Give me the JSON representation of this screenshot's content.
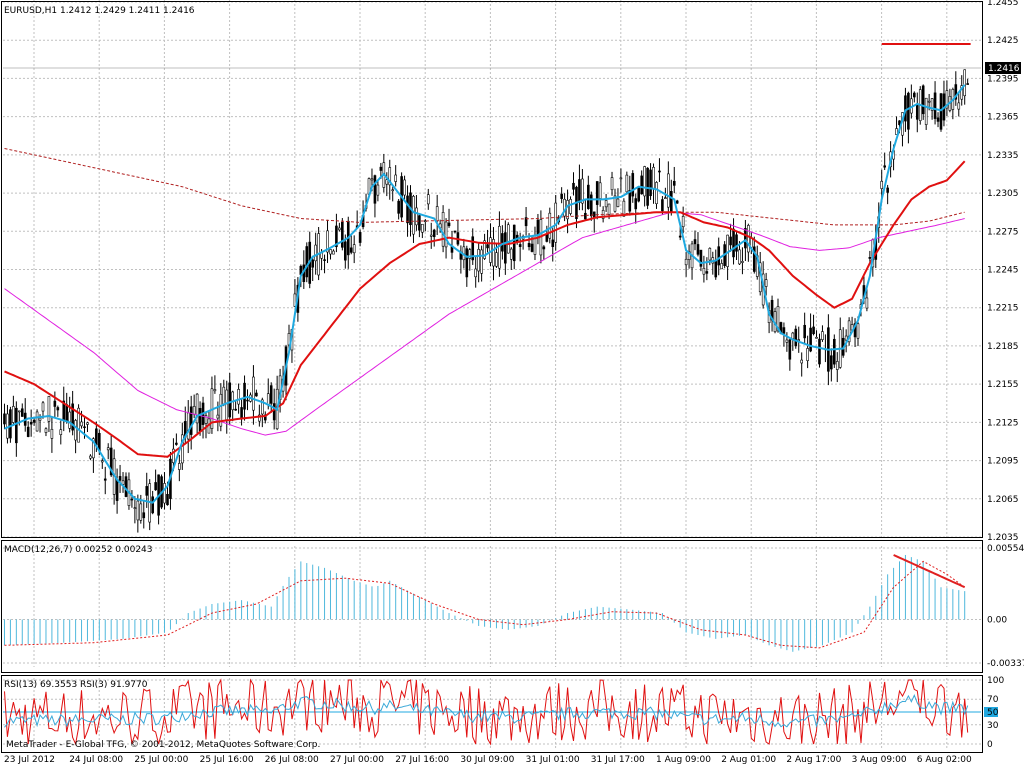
{
  "main": {
    "title": "EURUSD,H1  1.2412 1.2429 1.2411 1.2416",
    "current_price": "1.2416",
    "yticks": [
      "1.2455",
      "1.2425",
      "1.2395",
      "1.2365",
      "1.2335",
      "1.2305",
      "1.2275",
      "1.2245",
      "1.2215",
      "1.2185",
      "1.2155",
      "1.2125",
      "1.2095",
      "1.2065",
      "1.2035"
    ]
  },
  "macd": {
    "title": "MACD(12,26,7) 0.00252 0.00243",
    "yticks": [
      "0.00554",
      "0.00",
      "-0.00337"
    ]
  },
  "rsi": {
    "title": "RSI(13) 69.3553  RSI(3) 91.9770",
    "yticks": [
      "100",
      "70",
      "50",
      "30",
      "0"
    ],
    "level_label": "50"
  },
  "xticks": [
    "23 Jul 2012",
    "24 Jul 08:00",
    "25 Jul 00:00",
    "25 Jul 16:00",
    "26 Jul 08:00",
    "27 Jul 00:00",
    "27 Jul 16:00",
    "30 Jul 09:00",
    "31 Jul 01:00",
    "31 Jul 17:00",
    "1 Aug 09:00",
    "2 Aug 01:00",
    "2 Aug 17:00",
    "3 Aug 09:00",
    "6 Aug 02:00"
  ],
  "copyright": "MetaTrader - E-Global TFG, © 2001-2012, MetaQuotes Software Corp.",
  "colors": {
    "background": "#ffffff",
    "panel_bg": "#ffffff",
    "grid": "#c0c0c0",
    "candle": "#000000",
    "fast_ma": "#1fa9e0",
    "mid_ma": "#e01010",
    "slow_ma": "#e020e0",
    "dotted_ma": "#b02020",
    "macd_hist": "#4fb8dc",
    "macd_signal": "#e02020",
    "rsi13": "#3aa8d8",
    "rsi3": "#e01010",
    "level": "#20a8e0",
    "price_label_bg": "#000000",
    "price_label_fg": "#ffffff"
  },
  "chart_data": {
    "type": "line",
    "main_ylim": [
      1.2035,
      1.2455
    ],
    "macd_ylim": [
      -0.00337,
      0.00554
    ],
    "rsi_ylim": [
      0,
      100
    ],
    "fast_ma": [
      [
        0,
        1.212
      ],
      [
        8,
        1.2128
      ],
      [
        15,
        1.213
      ],
      [
        22,
        1.2125
      ],
      [
        30,
        1.211
      ],
      [
        38,
        1.208
      ],
      [
        44,
        1.2065
      ],
      [
        50,
        1.2062
      ],
      [
        55,
        1.2075
      ],
      [
        60,
        1.211
      ],
      [
        65,
        1.213
      ],
      [
        70,
        1.2135
      ],
      [
        75,
        1.214
      ],
      [
        82,
        1.2145
      ],
      [
        88,
        1.214
      ],
      [
        92,
        1.2135
      ],
      [
        96,
        1.218
      ],
      [
        100,
        1.224
      ],
      [
        104,
        1.2255
      ],
      [
        110,
        1.2262
      ],
      [
        116,
        1.227
      ],
      [
        120,
        1.228
      ],
      [
        124,
        1.231
      ],
      [
        128,
        1.232
      ],
      [
        133,
        1.2305
      ],
      [
        138,
        1.229
      ],
      [
        145,
        1.2285
      ],
      [
        150,
        1.2265
      ],
      [
        156,
        1.2255
      ],
      [
        162,
        1.2256
      ],
      [
        168,
        1.2265
      ],
      [
        174,
        1.227
      ],
      [
        180,
        1.2272
      ],
      [
        186,
        1.228
      ],
      [
        190,
        1.2295
      ],
      [
        196,
        1.23
      ],
      [
        202,
        1.23
      ],
      [
        208,
        1.2302
      ],
      [
        214,
        1.231
      ],
      [
        220,
        1.2308
      ],
      [
        226,
        1.23
      ],
      [
        230,
        1.226
      ],
      [
        235,
        1.225
      ],
      [
        240,
        1.2252
      ],
      [
        245,
        1.226
      ],
      [
        250,
        1.2268
      ],
      [
        254,
        1.2255
      ],
      [
        258,
        1.221
      ],
      [
        262,
        1.2195
      ],
      [
        266,
        1.219
      ],
      [
        272,
        1.2185
      ],
      [
        278,
        1.2182
      ],
      [
        283,
        1.2183
      ],
      [
        288,
        1.2205
      ],
      [
        292,
        1.224
      ],
      [
        296,
        1.23
      ],
      [
        300,
        1.234
      ],
      [
        304,
        1.237
      ],
      [
        308,
        1.2375
      ],
      [
        312,
        1.2372
      ],
      [
        316,
        1.237
      ],
      [
        320,
        1.2378
      ],
      [
        324,
        1.239
      ]
    ],
    "mid_ma": [
      [
        0,
        1.2165
      ],
      [
        10,
        1.2155
      ],
      [
        20,
        1.214
      ],
      [
        30,
        1.2125
      ],
      [
        38,
        1.2112
      ],
      [
        45,
        1.21
      ],
      [
        55,
        1.2098
      ],
      [
        62,
        1.211
      ],
      [
        70,
        1.2125
      ],
      [
        80,
        1.2128
      ],
      [
        88,
        1.213
      ],
      [
        94,
        1.214
      ],
      [
        100,
        1.217
      ],
      [
        110,
        1.22
      ],
      [
        120,
        1.223
      ],
      [
        130,
        1.225
      ],
      [
        140,
        1.2265
      ],
      [
        150,
        1.227
      ],
      [
        160,
        1.2266
      ],
      [
        170,
        1.2265
      ],
      [
        180,
        1.227
      ],
      [
        190,
        1.228
      ],
      [
        200,
        1.2286
      ],
      [
        210,
        1.2288
      ],
      [
        220,
        1.229
      ],
      [
        228,
        1.229
      ],
      [
        236,
        1.2282
      ],
      [
        244,
        1.2278
      ],
      [
        252,
        1.227
      ],
      [
        258,
        1.226
      ],
      [
        266,
        1.224
      ],
      [
        274,
        1.2225
      ],
      [
        280,
        1.2215
      ],
      [
        286,
        1.2222
      ],
      [
        292,
        1.225
      ],
      [
        300,
        1.228
      ],
      [
        306,
        1.23
      ],
      [
        312,
        1.231
      ],
      [
        318,
        1.2315
      ],
      [
        324,
        1.233
      ]
    ],
    "slow_ma": [
      [
        0,
        1.223
      ],
      [
        15,
        1.2205
      ],
      [
        30,
        1.218
      ],
      [
        45,
        1.215
      ],
      [
        58,
        1.2135
      ],
      [
        70,
        1.2128
      ],
      [
        80,
        1.212
      ],
      [
        88,
        1.2115
      ],
      [
        95,
        1.2118
      ],
      [
        105,
        1.2135
      ],
      [
        120,
        1.216
      ],
      [
        135,
        1.2185
      ],
      [
        150,
        1.221
      ],
      [
        165,
        1.223
      ],
      [
        180,
        1.225
      ],
      [
        195,
        1.227
      ],
      [
        210,
        1.228
      ],
      [
        225,
        1.229
      ],
      [
        235,
        1.2288
      ],
      [
        245,
        1.228
      ],
      [
        255,
        1.2272
      ],
      [
        265,
        1.2263
      ],
      [
        275,
        1.226
      ],
      [
        285,
        1.2262
      ],
      [
        295,
        1.227
      ],
      [
        305,
        1.2275
      ],
      [
        315,
        1.228
      ],
      [
        324,
        1.2285
      ]
    ],
    "dotted_ma": [
      [
        0,
        1.234
      ],
      [
        20,
        1.233
      ],
      [
        40,
        1.232
      ],
      [
        60,
        1.231
      ],
      [
        80,
        1.2295
      ],
      [
        100,
        1.2285
      ],
      [
        120,
        1.2282
      ],
      [
        140,
        1.2283
      ],
      [
        160,
        1.2284
      ],
      [
        180,
        1.2285
      ],
      [
        200,
        1.2288
      ],
      [
        220,
        1.229
      ],
      [
        240,
        1.229
      ],
      [
        260,
        1.2285
      ],
      [
        280,
        1.228
      ],
      [
        300,
        1.228
      ],
      [
        312,
        1.2283
      ],
      [
        324,
        1.229
      ]
    ],
    "candles_seed": 20120723,
    "rsi_level": 50,
    "resistance": {
      "price": 1.2422,
      "from": 296,
      "to": 326
    },
    "macd_hist": [
      [
        0,
        -0.002
      ],
      [
        20,
        -0.0018
      ],
      [
        40,
        -0.0015
      ],
      [
        55,
        -0.001
      ],
      [
        62,
        0.0005
      ],
      [
        70,
        0.0012
      ],
      [
        80,
        0.0015
      ],
      [
        90,
        0.001
      ],
      [
        95,
        0.003
      ],
      [
        100,
        0.0045
      ],
      [
        108,
        0.004
      ],
      [
        118,
        0.003
      ],
      [
        125,
        0.0025
      ],
      [
        130,
        0.003
      ],
      [
        138,
        0.002
      ],
      [
        150,
        0.0005
      ],
      [
        160,
        -0.0005
      ],
      [
        170,
        -0.0008
      ],
      [
        180,
        -0.0005
      ],
      [
        190,
        0.0005
      ],
      [
        200,
        0.001
      ],
      [
        210,
        0.0008
      ],
      [
        222,
        0.0005
      ],
      [
        230,
        -0.001
      ],
      [
        240,
        -0.0015
      ],
      [
        250,
        -0.0012
      ],
      [
        258,
        -0.002
      ],
      [
        266,
        -0.0025
      ],
      [
        276,
        -0.002
      ],
      [
        286,
        -0.001
      ],
      [
        292,
        0.001
      ],
      [
        298,
        0.0035
      ],
      [
        304,
        0.005
      ],
      [
        310,
        0.0045
      ],
      [
        316,
        0.0025
      ],
      [
        324,
        0.0022
      ]
    ],
    "macd_signal": [
      [
        0,
        -0.002
      ],
      [
        30,
        -0.0018
      ],
      [
        55,
        -0.0012
      ],
      [
        70,
        0.0005
      ],
      [
        85,
        0.0012
      ],
      [
        100,
        0.003
      ],
      [
        115,
        0.0032
      ],
      [
        130,
        0.0028
      ],
      [
        145,
        0.0012
      ],
      [
        160,
        0.0
      ],
      [
        175,
        -0.0004
      ],
      [
        190,
        0.0
      ],
      [
        205,
        0.0006
      ],
      [
        220,
        0.0005
      ],
      [
        235,
        -0.0008
      ],
      [
        250,
        -0.0012
      ],
      [
        262,
        -0.002
      ],
      [
        275,
        -0.0022
      ],
      [
        290,
        -0.001
      ],
      [
        300,
        0.0025
      ],
      [
        310,
        0.0045
      ],
      [
        318,
        0.0035
      ],
      [
        324,
        0.0025
      ]
    ],
    "macd_trendline": [
      [
        300,
        0.005
      ],
      [
        324,
        0.0025
      ]
    ]
  }
}
